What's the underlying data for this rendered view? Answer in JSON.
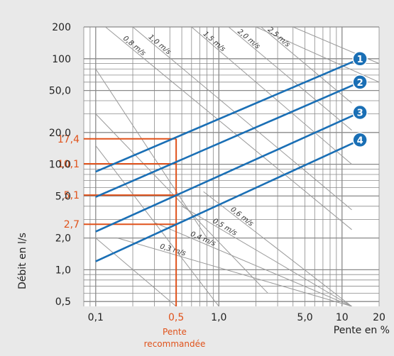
{
  "chart_data": {
    "type": "line",
    "x_scale": "log",
    "y_scale": "log",
    "xlim": [
      0.08,
      20
    ],
    "ylim": [
      0.45,
      200
    ],
    "xlabel": "Pente en %",
    "ylabel": "Débit en l/s",
    "x_ticks": [
      {
        "value": 0.1,
        "label": "0,1"
      },
      {
        "value": 0.5,
        "label": "0,5"
      },
      {
        "value": 1.0,
        "label": "1,0"
      },
      {
        "value": 5.0,
        "label": "5,0"
      },
      {
        "value": 10,
        "label": "10"
      },
      {
        "value": 20,
        "label": "20"
      }
    ],
    "y_ticks": [
      {
        "value": 0.5,
        "label": "0,5"
      },
      {
        "value": 1.0,
        "label": "1,0"
      },
      {
        "value": 2.0,
        "label": "2,0"
      },
      {
        "value": 5.0,
        "label": "5,0"
      },
      {
        "value": 10,
        "label": "10,0"
      },
      {
        "value": 20,
        "label": "20,0"
      },
      {
        "value": 50,
        "label": "50,0"
      },
      {
        "value": 100,
        "label": "100"
      },
      {
        "value": 200,
        "label": "200"
      }
    ],
    "series": [
      {
        "name": "1",
        "x": [
          0.1,
          14
        ],
        "y": [
          8.5,
          100
        ]
      },
      {
        "name": "2",
        "x": [
          0.1,
          14
        ],
        "y": [
          4.9,
          60
        ]
      },
      {
        "name": "3",
        "x": [
          0.1,
          14
        ],
        "y": [
          2.3,
          31
        ]
      },
      {
        "name": "4",
        "x": [
          0.1,
          14
        ],
        "y": [
          1.2,
          17
        ]
      }
    ],
    "velocity_lines": [
      {
        "label": "0,3 m/s",
        "x": [
          0.15,
          12
        ],
        "y": [
          2.0,
          0.45
        ]
      },
      {
        "label": "0,4 m/s",
        "x": [
          0.3,
          12
        ],
        "y": [
          2.8,
          0.45
        ]
      },
      {
        "label": "0,5 m/s",
        "x": [
          0.5,
          12
        ],
        "y": [
          4.0,
          0.45
        ]
      },
      {
        "label": "0,6 m/s",
        "x": [
          0.75,
          12
        ],
        "y": [
          5.5,
          0.45
        ]
      },
      {
        "label": "0,8 m/s",
        "x": [
          0.12,
          12
        ],
        "y": [
          200,
          2.4
        ]
      },
      {
        "label": "1,0 m/s",
        "x": [
          0.2,
          12
        ],
        "y": [
          200,
          3.7
        ]
      },
      {
        "label": "1,5 m/s",
        "x": [
          0.6,
          12
        ],
        "y": [
          200,
          10
        ]
      },
      {
        "label": "2,0 m/s",
        "x": [
          1.2,
          12
        ],
        "y": [
          200,
          21
        ]
      },
      {
        "label": "2,5 m/s",
        "x": [
          2.2,
          12
        ],
        "y": [
          200,
          38
        ]
      }
    ],
    "extra_diagonals": [
      {
        "x": [
          0.1,
          0.8
        ],
        "y": [
          80,
          2.0
        ]
      },
      {
        "x": [
          0.1,
          2.5
        ],
        "y": [
          30,
          0.6
        ]
      },
      {
        "x": [
          0.1,
          1.0
        ],
        "y": [
          15,
          0.45
        ]
      },
      {
        "x": [
          0.1,
          0.45
        ],
        "y": [
          2.0,
          0.45
        ]
      },
      {
        "x": [
          2.0,
          20
        ],
        "y": [
          200,
          60
        ]
      },
      {
        "x": [
          4.0,
          20
        ],
        "y": [
          200,
          90
        ]
      }
    ],
    "highlight": {
      "x": 0.45,
      "y_values": [
        {
          "value": 17.4,
          "label": "17,4"
        },
        {
          "value": 10.1,
          "label": "10,1"
        },
        {
          "value": 5.1,
          "label": "5,1"
        },
        {
          "value": 2.7,
          "label": "2,7"
        }
      ]
    },
    "annotation": [
      "Pente",
      "recommandée"
    ],
    "colors": {
      "background": "#e9e9e9",
      "plot_background": "#ffffff",
      "series": "#1a6fb5",
      "highlight": "#e0521b",
      "grid": "#8a8a8a",
      "diagonal": "#9a9a9a",
      "text": "#222222"
    }
  }
}
